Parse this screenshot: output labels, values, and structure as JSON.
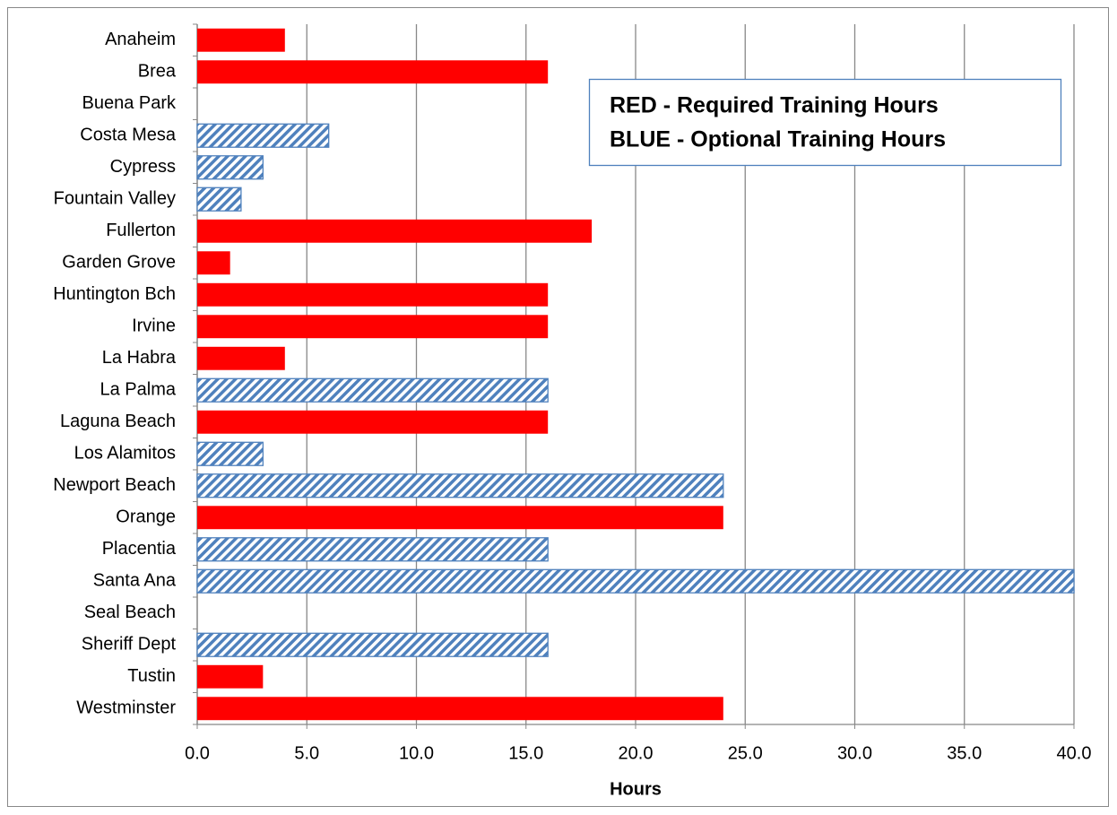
{
  "chart_data": {
    "type": "bar",
    "orientation": "horizontal",
    "categories": [
      "Anaheim",
      "Brea",
      "Buena Park",
      "Costa Mesa",
      "Cypress",
      "Fountain Valley",
      "Fullerton",
      "Garden Grove",
      "Huntington Bch",
      "Irvine",
      "La Habra",
      "La Palma",
      "Laguna Beach",
      "Los Alamitos",
      "Newport Beach",
      "Orange",
      "Placentia",
      "Santa Ana",
      "Seal Beach",
      "Sheriff Dept",
      "Tustin",
      "Westminster"
    ],
    "series": [
      {
        "name": "RED - Required Training Hours",
        "color": "#ff0000",
        "fill": "solid",
        "values": [
          4,
          16,
          null,
          null,
          null,
          null,
          18,
          1.5,
          16,
          16,
          4,
          null,
          16,
          null,
          null,
          24,
          null,
          null,
          null,
          null,
          3,
          24
        ]
      },
      {
        "name": "BLUE - Optional Training Hours",
        "color": "#4f81bd",
        "fill": "hatch",
        "values": [
          null,
          null,
          null,
          6,
          3,
          2,
          null,
          null,
          null,
          null,
          null,
          16,
          null,
          3,
          24,
          null,
          16,
          40,
          null,
          16,
          null,
          null
        ]
      }
    ],
    "x_label": "Hours",
    "xlim": [
      0,
      40
    ],
    "xticks": [
      {
        "value": 0,
        "label": "0.0"
      },
      {
        "value": 5,
        "label": "5.0"
      },
      {
        "value": 10,
        "label": "10.0"
      },
      {
        "value": 15,
        "label": "15.0"
      },
      {
        "value": 20,
        "label": "20.0"
      },
      {
        "value": 25,
        "label": "25.0"
      },
      {
        "value": 30,
        "label": "30.0"
      },
      {
        "value": 35,
        "label": "35.0"
      },
      {
        "value": 40,
        "label": "40.0"
      }
    ],
    "grid": true
  }
}
